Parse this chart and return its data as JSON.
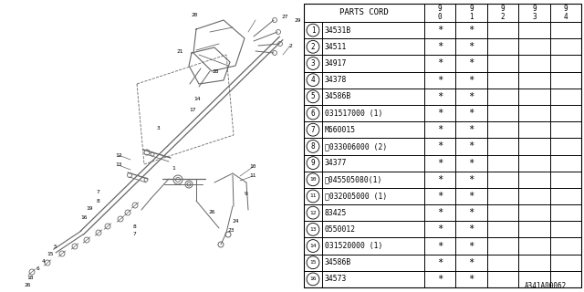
{
  "parts": [
    {
      "num": 1,
      "code": "34531B",
      "c90": "*",
      "c91": "*",
      "c92": "",
      "c93": "",
      "c94": ""
    },
    {
      "num": 2,
      "code": "34511",
      "c90": "*",
      "c91": "*",
      "c92": "",
      "c93": "",
      "c94": ""
    },
    {
      "num": 3,
      "code": "34917",
      "c90": "*",
      "c91": "*",
      "c92": "",
      "c93": "",
      "c94": ""
    },
    {
      "num": 4,
      "code": "34378",
      "c90": "*",
      "c91": "*",
      "c92": "",
      "c93": "",
      "c94": ""
    },
    {
      "num": 5,
      "code": "34586B",
      "c90": "*",
      "c91": "*",
      "c92": "",
      "c93": "",
      "c94": ""
    },
    {
      "num": 6,
      "code": "031517000 (1)",
      "c90": "*",
      "c91": "*",
      "c92": "",
      "c93": "",
      "c94": ""
    },
    {
      "num": 7,
      "code": "M660015",
      "c90": "*",
      "c91": "*",
      "c92": "",
      "c93": "",
      "c94": ""
    },
    {
      "num": 8,
      "code": "Ⓥ033006000 (2)",
      "c90": "*",
      "c91": "*",
      "c92": "",
      "c93": "",
      "c94": ""
    },
    {
      "num": 9,
      "code": "34377",
      "c90": "*",
      "c91": "*",
      "c92": "",
      "c93": "",
      "c94": ""
    },
    {
      "num": 10,
      "code": "Ⓢ045505080(1)",
      "c90": "*",
      "c91": "*",
      "c92": "",
      "c93": "",
      "c94": ""
    },
    {
      "num": 11,
      "code": "Ⓥ032005000 (1)",
      "c90": "*",
      "c91": "*",
      "c92": "",
      "c93": "",
      "c94": ""
    },
    {
      "num": 12,
      "code": "83425",
      "c90": "*",
      "c91": "*",
      "c92": "",
      "c93": "",
      "c94": ""
    },
    {
      "num": 13,
      "code": "0550012",
      "c90": "*",
      "c91": "*",
      "c92": "",
      "c93": "",
      "c94": ""
    },
    {
      "num": 14,
      "code": "031520000 (1)",
      "c90": "*",
      "c91": "*",
      "c92": "",
      "c93": "",
      "c94": ""
    },
    {
      "num": 15,
      "code": "34586B",
      "c90": "*",
      "c91": "*",
      "c92": "",
      "c93": "",
      "c94": ""
    },
    {
      "num": 16,
      "code": "34573",
      "c90": "*",
      "c91": "*",
      "c92": "",
      "c93": "",
      "c94": ""
    }
  ],
  "bg_color": "#ffffff",
  "line_color": "#000000",
  "text_color": "#000000",
  "dc": "#666666",
  "watermark": "A341A00062"
}
